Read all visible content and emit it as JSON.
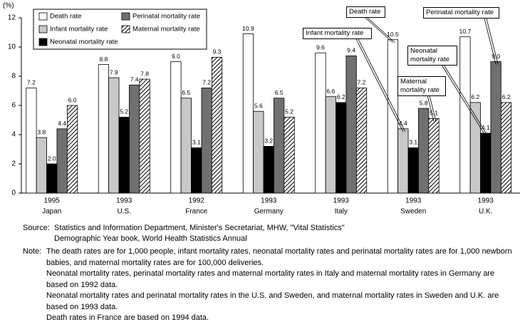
{
  "chart_data": {
    "type": "bar",
    "y_label": "(%)",
    "categories": [
      "Japan",
      "U.S.",
      "France",
      "Germany",
      "Italy",
      "Sweden",
      "U.K."
    ],
    "category_years": [
      "1995",
      "1993",
      "1992",
      "1993",
      "1993",
      "1993",
      "1993"
    ],
    "ylim": [
      0,
      12
    ],
    "yticks": [
      0,
      2,
      4,
      6,
      8,
      10,
      12
    ],
    "series": [
      {
        "name": "Death rate",
        "color": "#ffffff",
        "values": [
          7.2,
          8.8,
          9.0,
          10.9,
          9.6,
          10.5,
          10.7
        ],
        "value_labels": [
          "7.2",
          "8.8",
          "9.0",
          "10.9",
          "9.6",
          "10.5",
          "10.7"
        ]
      },
      {
        "name": "Infant mortality rate",
        "color": "#c8c8c8",
        "values": [
          3.8,
          7.9,
          6.5,
          5.6,
          6.6,
          4.4,
          6.2
        ],
        "value_labels": [
          "3.8",
          "7.9",
          "6.5",
          "5.6",
          "6.6",
          "4.4",
          "6.2"
        ]
      },
      {
        "name": "Neonatal mortality rate",
        "color": "#000000",
        "values": [
          2.0,
          5.2,
          3.1,
          3.2,
          6.2,
          3.1,
          4.1
        ],
        "value_labels": [
          "2.0",
          "5.2",
          "3.1",
          "3.2",
          "6.2",
          "3.1",
          "4.1"
        ]
      },
      {
        "name": "Perinatal mortality rate",
        "color": "#707070",
        "values": [
          4.4,
          7.4,
          7.2,
          6.5,
          9.4,
          5.8,
          9.0
        ],
        "value_labels": [
          "4.4",
          "7.4",
          "7.2",
          "6.5",
          "9.4",
          "5.8",
          "9.0"
        ]
      },
      {
        "name": "Maternal mortality rate",
        "color": "#ffffff",
        "hatch": true,
        "values": [
          6.0,
          7.8,
          9.3,
          5.2,
          7.2,
          5.1,
          6.2
        ],
        "value_labels": [
          "6.0",
          "7.8",
          "9.3",
          "5.2",
          "7.2",
          "5.1",
          "6.2"
        ]
      }
    ],
    "annotations": [
      "Death rate",
      "Infant mortality rate",
      "Perinatal mortality rate",
      "Neonatal mortality rate",
      "Maternal mortality rate"
    ],
    "source_label": "Source:",
    "source": [
      "Statistics and Information Department, Minister's Secretariat, MHW, \"Vital Statistics\"",
      "Demographic Year book, World Health Statistics Annual"
    ],
    "note_label": "Note:",
    "notes": [
      "The death rates are for 1,000 people, infant mortality rates, neonatal mortality rates and perinatal mortality rates are for 1,000 newborn babies, and maternal mortality rates are for 100,000 deliveries.",
      "Neonatal mortality rates, perinatal mortality rates and maternal mortality rates in Italy and maternal mortality rates in Germany are based on 1992 data.",
      "Neonatal mortality rates and perinatal mortality rates in the U.S. and Sweden, and maternal mortality rates in Sweden and U.K. are based on 1993 data.",
      "Death rates in France are based on 1994 data."
    ]
  }
}
